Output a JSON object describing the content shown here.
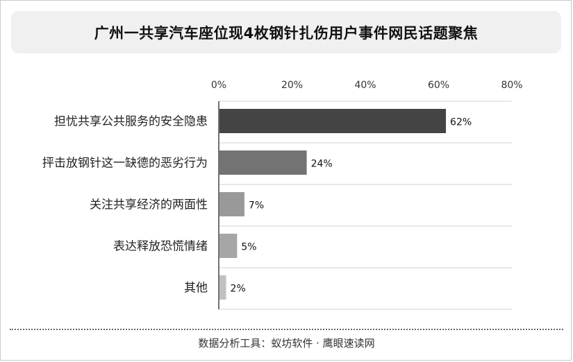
{
  "title": "广州一共享汽车座位现4枚钢针扎伤用户事件网民话题聚焦",
  "footer": "数据分析工具：蚁坊软件 · 鹰眼速读网",
  "chart_data": {
    "type": "bar",
    "orientation": "horizontal",
    "title": "广州一共享汽车座位现4枚钢针扎伤用户事件网民话题聚焦",
    "categories": [
      "担忧共享公共服务的安全隐患",
      "抨击放钢针这一缺德的恶劣行为",
      "关注共享经济的两面性",
      "表达释放恐慌情绪",
      "其他"
    ],
    "values": [
      62,
      24,
      7,
      5,
      2
    ],
    "value_labels": [
      "62%",
      "24%",
      "7%",
      "5%",
      "2%"
    ],
    "xlim": [
      0,
      80
    ],
    "x_ticks": [
      "0%",
      "20%",
      "40%",
      "60%",
      "80%"
    ],
    "tick_values": [
      0,
      20,
      40,
      60,
      80
    ],
    "axis_position": "top",
    "grid": true,
    "colors": [
      "#444444",
      "#737373",
      "#999999",
      "#a6a6a6",
      "#c0c0c0"
    ]
  }
}
